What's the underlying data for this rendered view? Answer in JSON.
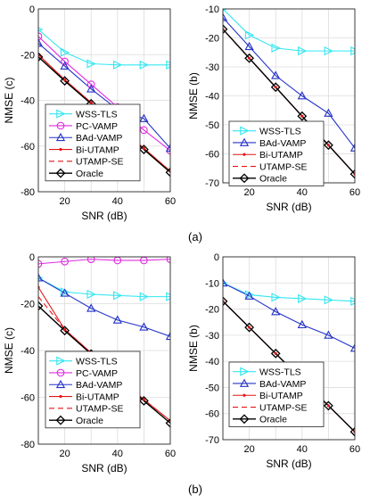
{
  "captions": [
    "(a)",
    "(b)"
  ],
  "series_style": {
    "WSS-TLS": {
      "color": "#33e6f0",
      "marker": "tri-right",
      "dash": ""
    },
    "PC-VAMP": {
      "color": "#e12be1",
      "marker": "circle",
      "dash": ""
    },
    "BAd-VAMP": {
      "color": "#2433c8",
      "marker": "tri-up",
      "dash": ""
    },
    "Bi-UTAMP": {
      "color": "#e41414",
      "marker": "dot",
      "dash": ""
    },
    "UTAMP-SE": {
      "color": "#e41414",
      "marker": "none",
      "dash": "6,4"
    },
    "Oracle": {
      "color": "#000000",
      "marker": "diamond",
      "dash": ""
    }
  },
  "chart_data": [
    {
      "type": "line",
      "xlabel": "SNR (dB)",
      "ylabel": "NMSE (c)",
      "xlim": [
        10,
        60
      ],
      "ylim": [
        -80,
        0
      ],
      "xticks": [
        20,
        40,
        60
      ],
      "yticks": [
        0,
        -20,
        -40,
        -60,
        -80
      ],
      "grid": true,
      "legend_position": "bottom-left",
      "x": [
        10,
        20,
        30,
        40,
        50,
        60
      ],
      "series": [
        {
          "name": "WSS-TLS",
          "values": [
            -9,
            -19,
            -24,
            -24.5,
            -24.5,
            -24.5
          ]
        },
        {
          "name": "PC-VAMP",
          "values": [
            -12,
            -23,
            -33,
            -43,
            -53,
            -62
          ]
        },
        {
          "name": "BAd-VAMP",
          "values": [
            -15,
            -25,
            -35,
            -44,
            -48,
            -61
          ]
        },
        {
          "name": "Bi-UTAMP",
          "values": [
            -20,
            -31,
            -41,
            -51,
            -61,
            -71
          ]
        },
        {
          "name": "UTAMP-SE",
          "values": [
            -20,
            -31,
            -41,
            -51,
            -61,
            -71
          ]
        },
        {
          "name": "Oracle",
          "values": [
            -21,
            -31.5,
            -41.5,
            -51.5,
            -61.5,
            -71.5
          ]
        }
      ]
    },
    {
      "type": "line",
      "xlabel": "SNR (dB)",
      "ylabel": "NMSE (b)",
      "xlim": [
        10,
        60
      ],
      "ylim": [
        -70,
        -10
      ],
      "xticks": [
        20,
        40,
        60
      ],
      "yticks": [
        -10,
        -20,
        -30,
        -40,
        -50,
        -60,
        -70
      ],
      "grid": true,
      "legend_position": "bottom-left",
      "x": [
        10,
        20,
        30,
        40,
        50,
        60
      ],
      "series": [
        {
          "name": "WSS-TLS",
          "values": [
            -10,
            -19,
            -23.5,
            -24.5,
            -24.5,
            -24.5
          ]
        },
        {
          "name": "BAd-VAMP",
          "values": [
            -13,
            -23,
            -33,
            -40,
            -46,
            -58
          ]
        },
        {
          "name": "Bi-UTAMP",
          "values": [
            -17,
            -27,
            -37,
            -47,
            -57,
            -67
          ]
        },
        {
          "name": "UTAMP-SE",
          "values": [
            -17,
            -27,
            -37,
            -47,
            -57,
            -67
          ]
        },
        {
          "name": "Oracle",
          "values": [
            -17,
            -27,
            -37,
            -47,
            -57,
            -67
          ]
        }
      ]
    },
    {
      "type": "line",
      "xlabel": "SNR (dB)",
      "ylabel": "NMSE (c)",
      "xlim": [
        10,
        60
      ],
      "ylim": [
        -80,
        0
      ],
      "xticks": [
        20,
        40,
        60
      ],
      "yticks": [
        0,
        -20,
        -40,
        -60,
        -80
      ],
      "grid": true,
      "legend_position": "bottom-left",
      "x": [
        10,
        20,
        30,
        40,
        50,
        60
      ],
      "series": [
        {
          "name": "WSS-TLS",
          "values": [
            -9,
            -15,
            -16,
            -16.5,
            -17,
            -17
          ]
        },
        {
          "name": "PC-VAMP",
          "values": [
            -3,
            -2,
            -1,
            -1.5,
            -1.5,
            -1
          ]
        },
        {
          "name": "BAd-VAMP",
          "values": [
            -9,
            -15.5,
            -22,
            -27,
            -30,
            -34
          ]
        },
        {
          "name": "Bi-UTAMP",
          "values": [
            -13,
            -31,
            -41,
            -51,
            -61,
            -70
          ]
        },
        {
          "name": "UTAMP-SE",
          "values": [
            -17,
            -31,
            -41,
            -51,
            -61,
            -70
          ]
        },
        {
          "name": "Oracle",
          "values": [
            -21,
            -31.5,
            -41.5,
            -51.5,
            -61.5,
            -71
          ]
        }
      ]
    },
    {
      "type": "line",
      "xlabel": "SNR (dB)",
      "ylabel": "NMSE (b)",
      "xlim": [
        10,
        60
      ],
      "ylim": [
        -70,
        0
      ],
      "xticks": [
        20,
        40,
        60
      ],
      "yticks": [
        0,
        -10,
        -20,
        -30,
        -40,
        -50,
        -60,
        -70
      ],
      "grid": true,
      "legend_position": "bottom-left",
      "x": [
        10,
        20,
        30,
        40,
        50,
        60
      ],
      "series": [
        {
          "name": "WSS-TLS",
          "values": [
            -10,
            -14.5,
            -15.5,
            -16,
            -16.5,
            -17
          ]
        },
        {
          "name": "BAd-VAMP",
          "values": [
            -10,
            -15,
            -21,
            -26,
            -30,
            -35
          ]
        },
        {
          "name": "Bi-UTAMP",
          "values": [
            -17,
            -27,
            -37,
            -47,
            -57,
            -67
          ]
        },
        {
          "name": "UTAMP-SE",
          "values": [
            -17,
            -27,
            -37,
            -47,
            -57,
            -67
          ]
        },
        {
          "name": "Oracle",
          "values": [
            -17,
            -27,
            -37,
            -47,
            -57,
            -67
          ]
        }
      ]
    }
  ]
}
